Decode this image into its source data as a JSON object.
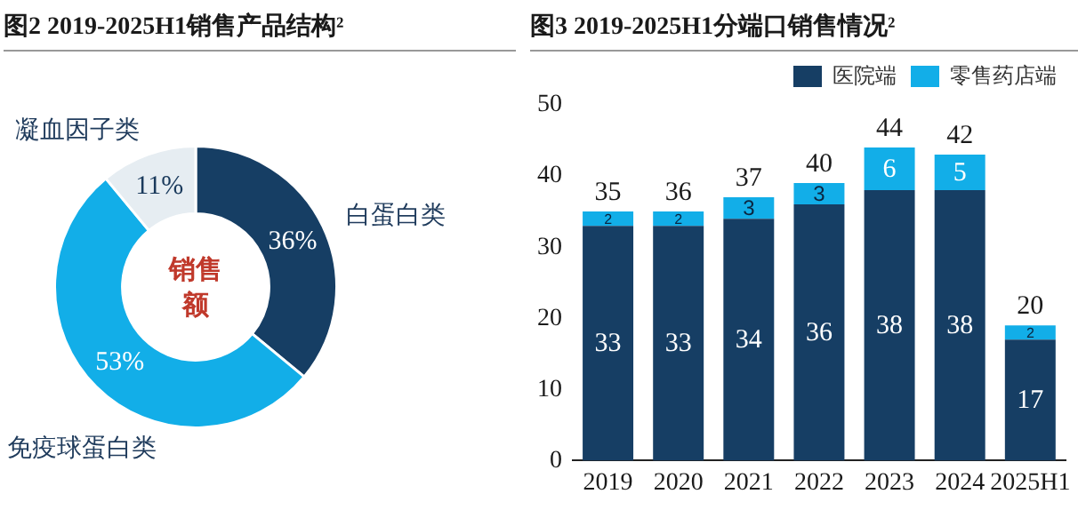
{
  "chart_data": [
    {
      "type": "donut",
      "title": "图2 2019-2025H1销售产品结构²",
      "categories": [
        "白蛋白类",
        "免疫球蛋白类",
        "凝血因子类"
      ],
      "values": [
        36,
        53,
        11
      ],
      "colors": [
        "#163e64",
        "#12aee8",
        "#e6edf2"
      ],
      "value_labels": [
        "36%",
        "53%",
        "11%"
      ],
      "annotations": [
        "销售额"
      ]
    },
    {
      "type": "bar",
      "title": "图3 2019-2025H1分端口销售情况²",
      "categories": [
        "2019",
        "2020",
        "2021",
        "2022",
        "2023",
        "2024",
        "2025H1"
      ],
      "stacked": true,
      "legend": "top right",
      "ylim": [
        0,
        50
      ],
      "yticks": [
        0,
        10,
        20,
        30,
        40,
        50
      ],
      "data_labels": true,
      "totals": [
        "35",
        "36",
        "37",
        "40",
        "44",
        "42",
        "20"
      ],
      "series": [
        {
          "name": "医院端",
          "color": "#163e64",
          "values": [
            33,
            33,
            34,
            36,
            38,
            38,
            17
          ]
        },
        {
          "name": "零售药店端",
          "color": "#12aee8",
          "values": [
            2,
            2,
            3,
            3,
            6,
            5,
            2
          ]
        }
      ]
    }
  ]
}
